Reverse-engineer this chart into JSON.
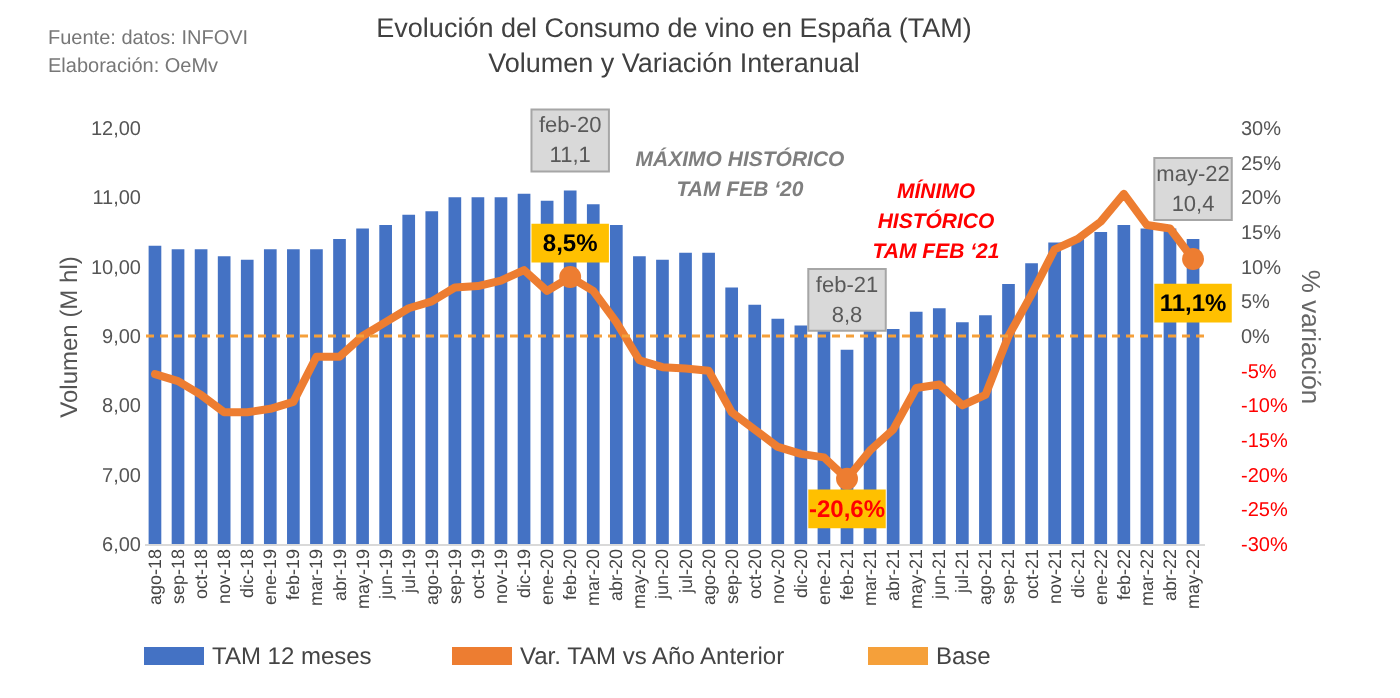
{
  "chart_data": {
    "type": "bar",
    "title": "Evolución del Consumo de vino en España (TAM)",
    "subtitle": "Volumen y Variación Interanual",
    "ylabel": "Volumen (M hl)",
    "y2label": "% variación",
    "categories": [
      "ago-18",
      "sep-18",
      "oct-18",
      "nov-18",
      "dic-18",
      "ene-19",
      "feb-19",
      "mar-19",
      "abr-19",
      "may-19",
      "jun-19",
      "jul-19",
      "ago-19",
      "sep-19",
      "oct-19",
      "nov-19",
      "dic-19",
      "ene-20",
      "feb-20",
      "mar-20",
      "abr-20",
      "may-20",
      "jun-20",
      "jul-20",
      "ago-20",
      "sep-20",
      "oct-20",
      "nov-20",
      "dic-20",
      "ene-21",
      "feb-21",
      "mar-21",
      "abr-21",
      "may-21",
      "jun-21",
      "jul-21",
      "ago-21",
      "sep-21",
      "oct-21",
      "nov-21",
      "dic-21",
      "ene-22",
      "feb-22",
      "mar-22",
      "abr-22",
      "may-22"
    ],
    "series": [
      {
        "name": "TAM 12 meses",
        "color": "#4472c4",
        "values": [
          10.3,
          10.25,
          10.25,
          10.15,
          10.1,
          10.25,
          10.25,
          10.25,
          10.4,
          10.55,
          10.6,
          10.75,
          10.8,
          11.0,
          11.0,
          11.0,
          11.05,
          10.95,
          11.1,
          10.9,
          10.6,
          10.15,
          10.1,
          10.2,
          10.2,
          9.7,
          9.45,
          9.25,
          9.15,
          9.1,
          8.8,
          9.1,
          9.1,
          9.35,
          9.4,
          9.2,
          9.3,
          9.75,
          10.05,
          10.35,
          10.4,
          10.5,
          10.6,
          10.55,
          10.55,
          10.4
        ],
        "value_labels": [
          null,
          null,
          null,
          null,
          null,
          null,
          null,
          null,
          null,
          null,
          null,
          null,
          null,
          null,
          null,
          null,
          null,
          null,
          "11,1",
          null,
          null,
          null,
          null,
          null,
          null,
          null,
          null,
          null,
          null,
          null,
          "8,8",
          null,
          null,
          null,
          null,
          null,
          null,
          null,
          null,
          null,
          null,
          null,
          null,
          null,
          null,
          "10,4"
        ]
      },
      {
        "name": "Var. TAM vs Año Anterior",
        "type": "line",
        "axis": "y2",
        "color": "#ed7d31",
        "values": [
          -5.5,
          -6.5,
          -8.5,
          -11,
          -11,
          -10.5,
          -9.5,
          -3,
          -3,
          0,
          2,
          4,
          5,
          7,
          7.2,
          8,
          9.5,
          6.5,
          8.5,
          6.5,
          2,
          -3.5,
          -4.5,
          -4.7,
          -5,
          -11,
          -13.5,
          -16,
          -17,
          -17.5,
          -20.6,
          -16.5,
          -13.5,
          -7.5,
          -7,
          -10,
          -8.5,
          0,
          6,
          12.5,
          14,
          16.5,
          20.5,
          16,
          15.5,
          11.1
        ],
        "value_labels": [
          null,
          null,
          null,
          null,
          null,
          null,
          null,
          null,
          null,
          null,
          null,
          null,
          null,
          null,
          null,
          null,
          null,
          null,
          "8,5%",
          null,
          null,
          null,
          null,
          null,
          null,
          null,
          null,
          null,
          null,
          null,
          "-20,6%",
          null,
          null,
          null,
          null,
          null,
          null,
          null,
          null,
          null,
          null,
          null,
          null,
          null,
          null,
          "11,1%"
        ]
      }
    ],
    "ylim": [
      6,
      12
    ],
    "yticks": [
      {
        "value": 6,
        "label": "6,00"
      },
      {
        "value": 7,
        "label": "7,00"
      },
      {
        "value": 8,
        "label": "8,00"
      },
      {
        "value": 9,
        "label": "9,00"
      },
      {
        "value": 10,
        "label": "10,00"
      },
      {
        "value": 11,
        "label": "11,00"
      },
      {
        "value": 12,
        "label": "12,00"
      }
    ],
    "y2lim": [
      -30,
      30
    ],
    "y2ticks": [
      {
        "value": -30,
        "label": "-30%"
      },
      {
        "value": -25,
        "label": "-25%"
      },
      {
        "value": -20,
        "label": "-20%"
      },
      {
        "value": -15,
        "label": "-15%"
      },
      {
        "value": -10,
        "label": "-10%"
      },
      {
        "value": -5,
        "label": "-5%"
      },
      {
        "value": 0,
        "label": "0%"
      },
      {
        "value": 5,
        "label": "5%"
      },
      {
        "value": 10,
        "label": "10%"
      },
      {
        "value": 15,
        "label": "15%"
      },
      {
        "value": 20,
        "label": "20%"
      },
      {
        "value": 25,
        "label": "25%"
      },
      {
        "value": 30,
        "label": "30%"
      }
    ],
    "ref_lines": [
      {
        "axis": "y2",
        "value": 0,
        "label": "Base",
        "color": "#f5a03a",
        "line_style": "dashed"
      }
    ],
    "annotations": [
      {
        "text": "feb-20",
        "x": "feb-20",
        "y": 11.1
      },
      "MÁXIMO HISTÓRICO\nTAM FEB ‘20",
      "MÍNIMO\nHISTÓRICO\nTAM FEB ‘21",
      {
        "text": "feb-21",
        "x": "feb-21",
        "y": 8.8
      },
      {
        "text": "may-22",
        "x": "may-22",
        "y": 10.4
      },
      "Fuente: datos: INFOVI",
      "Elaboración: OeMv"
    ],
    "legend": "bottom",
    "grid": false
  }
}
